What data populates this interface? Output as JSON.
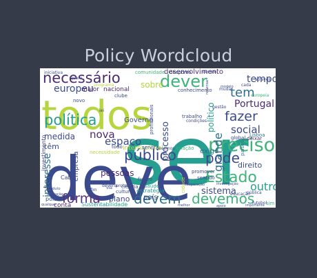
{
  "chart_data": {
    "type": "wordcloud",
    "title": "Policy Wordcloud",
    "palette": [
      "#3b4a8c",
      "#269e90",
      "#40b37a",
      "#b6d53f",
      "#5c2e7c",
      "#2f6f8e"
    ],
    "words": [
      {
        "text": "ser",
        "weight": 100,
        "color": "#269e90"
      },
      {
        "text": "deve",
        "weight": 95,
        "color": "#3b4a8c"
      },
      {
        "text": "todos",
        "weight": 70,
        "color": "#b6d53f"
      },
      {
        "text": "dever",
        "weight": 38,
        "color": "#40b37a"
      },
      {
        "text": "preciso",
        "weight": 35,
        "color": "#40b37a"
      },
      {
        "text": "necessário",
        "weight": 30,
        "color": "#4b2a72"
      },
      {
        "text": "política",
        "weight": 30,
        "color": "#269e90"
      },
      {
        "text": "devem",
        "weight": 26,
        "color": "#2f6f8e"
      },
      {
        "text": "devemos",
        "weight": 26,
        "color": "#40b37a"
      },
      {
        "text": "Estado",
        "weight": 26,
        "color": "#40b37a"
      },
      {
        "text": "forma",
        "weight": 24,
        "color": "#5c2e7c"
      },
      {
        "text": "público",
        "weight": 22,
        "color": "#3b4a8c"
      },
      {
        "text": "pode",
        "weight": 22,
        "color": "#3b4a8c"
      },
      {
        "text": "fazer",
        "weight": 22,
        "color": "#3b4a8c"
      },
      {
        "text": "tem",
        "weight": 20,
        "color": "#2f6f8e"
      },
      {
        "text": "tempo",
        "weight": 18,
        "color": "#3b4a8c"
      },
      {
        "text": "europeu",
        "weight": 18,
        "color": "#3b4a8c"
      },
      {
        "text": "social",
        "weight": 18,
        "color": "#3b4a8c"
      },
      {
        "text": "Portugal",
        "weight": 17,
        "color": "#4b2a72"
      },
      {
        "text": "espaço",
        "weight": 17,
        "color": "#3b4a8c"
      },
      {
        "text": "grande",
        "weight": 16,
        "color": "#2f6f8e"
      },
      {
        "text": "nova",
        "weight": 16,
        "color": "#4b2a72"
      },
      {
        "text": "sistema",
        "weight": 15,
        "color": "#3b4a8c"
      },
      {
        "text": "outro",
        "weight": 15,
        "color": "#269e90"
      },
      {
        "text": "interesse",
        "weight": 14,
        "color": "#2f6f8e"
      },
      {
        "text": "processo",
        "weight": 14,
        "color": "#3b4a8c"
      },
      {
        "text": "político",
        "weight": 13,
        "color": "#269e90"
      },
      {
        "text": "pessoas",
        "weight": 12,
        "color": "#4b2a72"
      },
      {
        "text": "medida",
        "weight": 12,
        "color": "#3b4a8c"
      },
      {
        "text": "direito",
        "weight": 11,
        "color": "#3b4a8c"
      },
      {
        "text": "têm",
        "weight": 11,
        "color": "#3b4a8c"
      },
      {
        "text": "exige",
        "weight": 11,
        "color": "#2f6f8e"
      },
      {
        "text": "sobre",
        "weight": 10,
        "color": "#b6d53f"
      },
      {
        "text": "plano",
        "weight": 10,
        "color": "#3b4a8c"
      },
      {
        "text": "desenvolvimento",
        "weight": 9,
        "color": "#4b2a72"
      },
      {
        "text": "Governo",
        "weight": 9,
        "color": "#3b4a8c"
      },
      {
        "text": "empresa",
        "weight": 9,
        "color": "#3b4a8c"
      },
      {
        "text": "investimento",
        "weight": 9,
        "color": "#3b4a8c"
      },
      {
        "text": "país",
        "weight": 9,
        "color": "#3b4a8c"
      },
      {
        "text": "internacional",
        "weight": 8,
        "color": "#b6d53f"
      },
      {
        "text": "maior",
        "weight": 8,
        "color": "#4b2a72"
      },
      {
        "text": "nacional",
        "weight": 8,
        "color": "#4b2a72"
      },
      {
        "text": "Sustentabilidade",
        "weight": 7,
        "color": "#269e90"
      },
      {
        "text": "estratégia",
        "weight": 7,
        "color": "#269e90"
      },
      {
        "text": "conta",
        "weight": 7,
        "color": "#4b2a72"
      },
      {
        "text": "pois",
        "weight": 7,
        "color": "#3b4a8c"
      },
      {
        "text": "Cabe",
        "weight": 7,
        "color": "#3b4a8c"
      },
      {
        "text": "futuro",
        "weight": 6,
        "color": "#3b4a8c"
      },
      {
        "text": "novo",
        "weight": 6,
        "color": "#3b4a8c"
      },
      {
        "text": "cultura",
        "weight": 6,
        "color": "#3b4a8c"
      },
      {
        "text": "saúde",
        "weight": 6,
        "color": "#269e90"
      },
      {
        "text": "necessidade",
        "weight": 6,
        "color": "#b6d53f"
      },
      {
        "text": "cidade",
        "weight": 6,
        "color": "#b6d53f"
      },
      {
        "text": "ciência",
        "weight": 6,
        "color": "#3b4a8c"
      },
      {
        "text": "Lisboa",
        "weight": 6,
        "color": "#2f6f8e"
      },
      {
        "text": "trabalho",
        "weight": 6,
        "color": "#3b4a8c"
      },
      {
        "text": "todo",
        "weight": 5,
        "color": "#3b4a8c"
      },
      {
        "text": "global",
        "weight": 5,
        "color": "#3b4a8c"
      },
      {
        "text": "deixar",
        "weight": 5,
        "color": "#4b2a72"
      },
      {
        "text": "comunidade",
        "weight": 5,
        "color": "#40b37a"
      },
      {
        "text": "conhecimento",
        "weight": 5,
        "color": "#3b4a8c"
      },
      {
        "text": "clube",
        "weight": 5,
        "color": "#3b4a8c"
      },
      {
        "text": "servir",
        "weight": 5,
        "color": "#3b4a8c"
      },
      {
        "text": "devemos",
        "weight": 5,
        "color": "#3b4a8c"
      },
      {
        "text": "promover",
        "weight": 5,
        "color": "#3b4a8c"
      },
      {
        "text": "sentido",
        "weight": 5,
        "color": "#3b4a8c"
      },
      {
        "text": "criação",
        "weight": 5,
        "color": "#40b37a"
      },
      {
        "text": "profissionais",
        "weight": 5,
        "color": "#3b4a8c"
      },
      {
        "text": "desporto",
        "weight": 5,
        "color": "#3b4a8c"
      },
      {
        "text": "europeia",
        "weight": 5,
        "color": "#40b37a"
      },
      {
        "text": "pública",
        "weight": 5,
        "color": "#3b4a8c"
      },
      {
        "text": "iniciativa",
        "weight": 4,
        "color": "#3b4a8c"
      },
      {
        "text": "programa",
        "weight": 4,
        "color": "#b6d53f"
      },
      {
        "text": "quem",
        "weight": 4,
        "color": "#3b4a8c"
      },
      {
        "text": "lei",
        "weight": 4,
        "color": "#3b4a8c"
      },
      {
        "text": "fim",
        "weight": 4,
        "color": "#3b4a8c"
      },
      {
        "text": "via",
        "weight": 4,
        "color": "#3b4a8c"
      },
      {
        "text": "cada",
        "weight": 4,
        "color": "#3b4a8c"
      },
      {
        "text": "através",
        "weight": 4,
        "color": "#3b4a8c"
      },
      {
        "text": "devem",
        "weight": 4,
        "color": "#3b4a8c"
      },
      {
        "text": "importante",
        "weight": 4,
        "color": "#3b4a8c"
      },
      {
        "text": "educação",
        "weight": 4,
        "color": "#3b4a8c"
      },
      {
        "text": "futebol",
        "weight": 4,
        "color": "#3b4a8c"
      },
      {
        "text": "mudar",
        "weight": 4,
        "color": "#3b4a8c"
      },
      {
        "text": "gestão",
        "weight": 4,
        "color": "#3b4a8c"
      },
      {
        "text": "condições",
        "weight": 4,
        "color": "#3b4a8c"
      },
      {
        "text": "cooperação",
        "weight": 4,
        "color": "#3b4a8c"
      },
      {
        "text": "melhor",
        "weight": 4,
        "color": "#3b4a8c"
      },
      {
        "text": "proteção",
        "weight": 4,
        "color": "#3b4a8c"
      },
      {
        "text": "deveria",
        "weight": 4,
        "color": "#3b4a8c"
      },
      {
        "text": "produto",
        "weight": 3,
        "color": "#3b4a8c"
      },
      {
        "text": "avaliação",
        "weight": 3,
        "color": "#3b4a8c"
      },
      {
        "text": "regra",
        "weight": 3,
        "color": "#3b4a8c"
      },
      {
        "text": "qualquer",
        "weight": 3,
        "color": "#3b4a8c"
      },
      {
        "text": "investigação",
        "weight": 3,
        "color": "#3b4a8c"
      },
      {
        "text": "modelo",
        "weight": 3,
        "color": "#3b4a8c"
      },
      {
        "text": "repensar",
        "weight": 3,
        "color": "#3b4a8c"
      },
      {
        "text": "apoio",
        "weight": 3,
        "color": "#3b4a8c"
      },
      {
        "text": "sim",
        "weight": 3,
        "color": "#40b37a"
      },
      {
        "text": "países",
        "weight": 3,
        "color": "#2f6f8e"
      }
    ]
  }
}
